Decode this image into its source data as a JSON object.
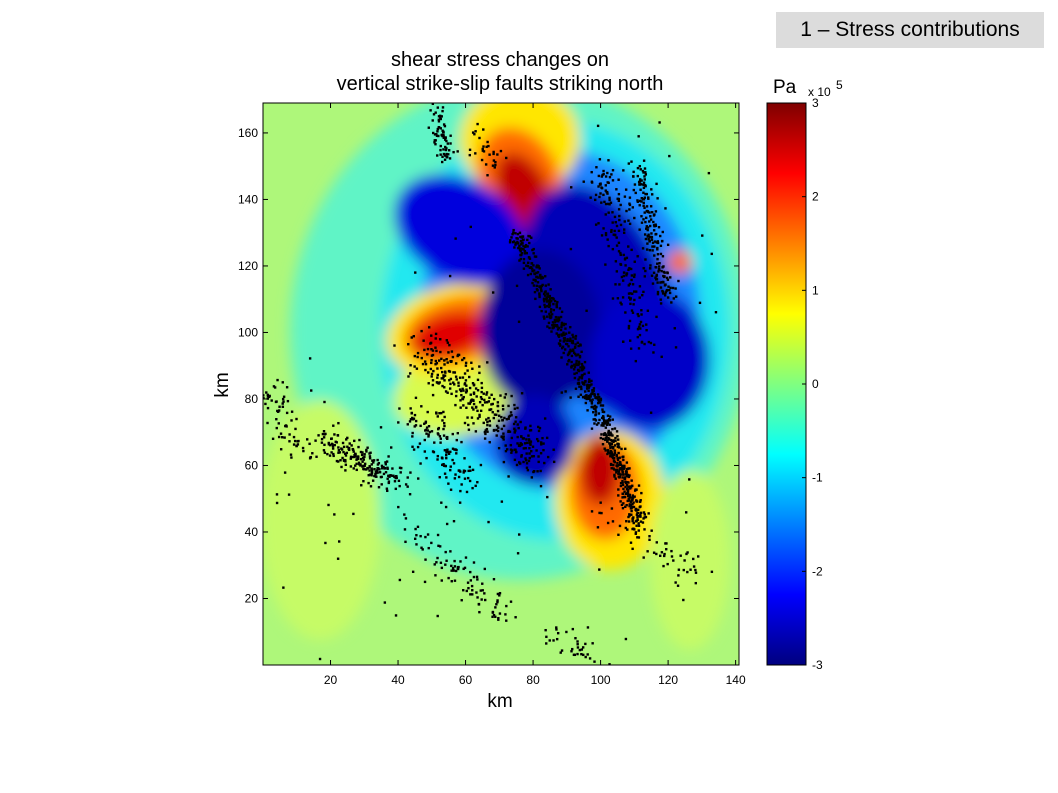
{
  "slide_label": "1 – Stress contributions",
  "chart_data": {
    "type": "heatmap",
    "title_lines": [
      "shear stress changes on",
      "vertical strike-slip faults striking north"
    ],
    "xlabel": "km",
    "ylabel": "km",
    "xlim": [
      0,
      141
    ],
    "ylim": [
      0,
      169
    ],
    "xticks": [
      20,
      40,
      60,
      80,
      100,
      120,
      140
    ],
    "yticks": [
      20,
      40,
      60,
      80,
      100,
      120,
      140,
      160
    ],
    "colorbar": {
      "unit": "Pa",
      "exponent_label": "x 10",
      "exponent": "5",
      "range": [
        -3,
        3
      ],
      "ticks": [
        3,
        2,
        1,
        0,
        -1,
        -2,
        -3
      ]
    },
    "overlay": {
      "type": "scatter",
      "description": "aftershock epicenters (black dots)"
    },
    "grid": false,
    "legend": "none"
  }
}
